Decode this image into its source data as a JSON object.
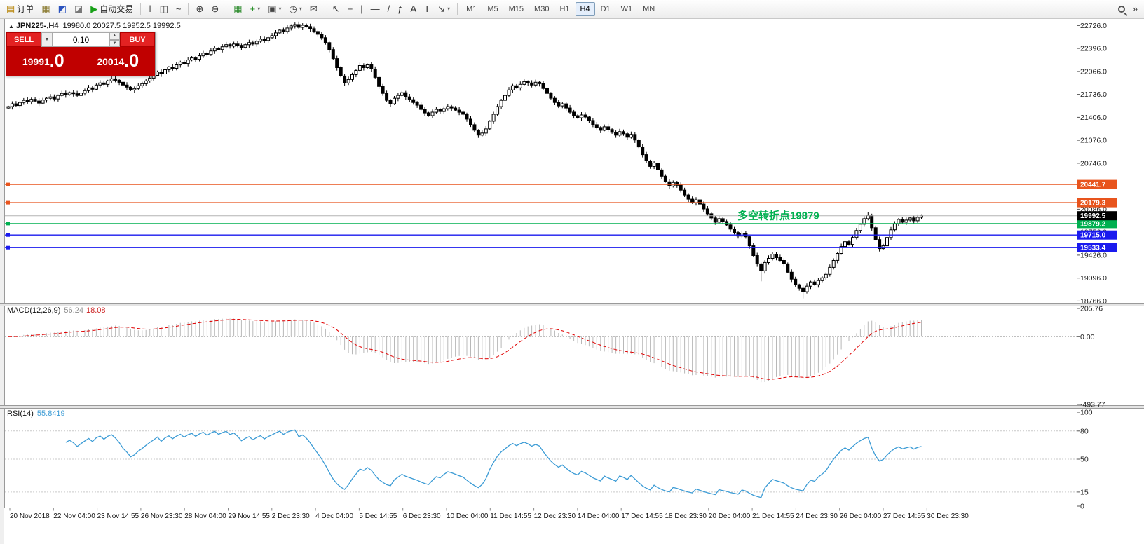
{
  "toolbar": {
    "groups": [
      {
        "items": [
          {
            "name": "new-order-button",
            "glyph": "▤",
            "color": "#b8860b",
            "label": "订单"
          },
          {
            "name": "charts-button",
            "glyph": "▦",
            "color": "#8a7a30"
          },
          {
            "name": "market-watch-button",
            "glyph": "◩",
            "color": "#2a52be"
          },
          {
            "name": "news-button",
            "glyph": "◪",
            "color": "#777777"
          },
          {
            "name": "autotrading-button",
            "glyph": "▶",
            "color": "#18a018",
            "label": "自动交易"
          }
        ]
      },
      {
        "items": [
          {
            "name": "bar-chart-button",
            "glyph": "‖"
          },
          {
            "name": "candlestick-chart-button",
            "glyph": "◫"
          },
          {
            "name": "line-chart-button",
            "glyph": "~"
          }
        ]
      },
      {
        "items": [
          {
            "name": "zoom-in-button",
            "glyph": "⊕"
          },
          {
            "name": "zoom-out-button",
            "glyph": "⊖"
          }
        ]
      },
      {
        "items": [
          {
            "name": "tile-windows-button",
            "glyph": "▦",
            "color": "#2a8a2a"
          },
          {
            "name": "indicators-button",
            "glyph": "+",
            "color": "#1a8a1a",
            "caret": true
          },
          {
            "name": "new-chart-button",
            "glyph": "▣",
            "color": "#444444",
            "caret": true
          },
          {
            "name": "period-button",
            "glyph": "◷",
            "color": "#444444",
            "caret": true
          },
          {
            "name": "alerts-button",
            "glyph": "✉",
            "color": "#444444"
          }
        ]
      },
      {
        "items": [
          {
            "name": "cursor-button",
            "glyph": "↖"
          },
          {
            "name": "crosshair-button",
            "glyph": "+"
          },
          {
            "name": "vertical-line-button",
            "glyph": "|"
          },
          {
            "name": "horizontal-line-button",
            "glyph": "—"
          },
          {
            "name": "trendline-button",
            "glyph": "/"
          },
          {
            "name": "fibonacci-button",
            "glyph": "ƒ"
          },
          {
            "name": "text-button",
            "glyph": "A"
          },
          {
            "name": "label-button",
            "glyph": "T"
          },
          {
            "name": "arrows-button",
            "glyph": "↘",
            "caret": true
          }
        ]
      },
      {
        "items": [
          {
            "name": "timeframe-m1-button",
            "tf": true,
            "label2": "M1"
          },
          {
            "name": "timeframe-m5-button",
            "tf": true,
            "label2": "M5"
          },
          {
            "name": "timeframe-m15-button",
            "tf": true,
            "label2": "M15"
          },
          {
            "name": "timeframe-m30-button",
            "tf": true,
            "label2": "M30"
          },
          {
            "name": "timeframe-h1-button",
            "tf": true,
            "label2": "H1"
          },
          {
            "name": "timeframe-h4-button",
            "tf": true,
            "label2": "H4",
            "active": true
          },
          {
            "name": "timeframe-d1-button",
            "tf": true,
            "label2": "D1"
          },
          {
            "name": "timeframe-w1-button",
            "tf": true,
            "label2": "W1"
          },
          {
            "name": "timeframe-mn-button",
            "tf": true,
            "label2": "MN"
          }
        ]
      },
      {
        "align": "right",
        "items": [
          {
            "name": "search-icon",
            "icon": "search"
          },
          {
            "name": "toolbar-overflow-button",
            "glyph": "»"
          }
        ]
      }
    ]
  },
  "chart": {
    "symbol": "JPN225-,H4",
    "ohlc": "19980.0 20027.5 19952.5 19992.5"
  },
  "trade_panel": {
    "sell_label": "SELL",
    "buy_label": "BUY",
    "volume": "0.10",
    "bid_main": "19991",
    "bid_frac": ".0",
    "ask_main": "20014",
    "ask_frac": ".0"
  },
  "chart_data": {
    "type": "candlestick",
    "symbol": "JPN225",
    "timeframe": "H4",
    "price_axis_labels": [
      "22726.0",
      "22396.0",
      "22066.0",
      "21736.0",
      "21406.0",
      "21076.0",
      "20746.0",
      "20416.0",
      "20086.0",
      "19756.0",
      "19426.0",
      "19096.0",
      "18766.0"
    ],
    "price_min": 18740,
    "price_max": 22790,
    "closes": [
      21560,
      21600,
      21575,
      21620,
      21650,
      21630,
      21665,
      21640,
      21610,
      21655,
      21680,
      21700,
      21670,
      21720,
      21750,
      21730,
      21760,
      21745,
      21720,
      21755,
      21790,
      21830,
      21810,
      21870,
      21900,
      21880,
      21930,
      21960,
      21940,
      21910,
      21870,
      21840,
      21800,
      21820,
      21860,
      21890,
      21930,
      21970,
      22010,
      22060,
      22030,
      22090,
      22130,
      22110,
      22160,
      22200,
      22180,
      22230,
      22260,
      22240,
      22290,
      22330,
      22310,
      22360,
      22400,
      22380,
      22420,
      22450,
      22430,
      22460,
      22440,
      22410,
      22450,
      22480,
      22460,
      22500,
      22530,
      22510,
      22550,
      22580,
      22620,
      22660,
      22640,
      22690,
      22720,
      22740,
      22700,
      22730,
      22710,
      22680,
      22640,
      22600,
      22550,
      22480,
      22380,
      22250,
      22120,
      22000,
      21900,
      21950,
      22020,
      22080,
      22150,
      22120,
      22160,
      22100,
      21980,
      21850,
      21750,
      21650,
      21600,
      21680,
      21720,
      21760,
      21700,
      21660,
      21620,
      21580,
      21520,
      21470,
      21430,
      21480,
      21520,
      21490,
      21530,
      21560,
      21540,
      21510,
      21480,
      21450,
      21380,
      21300,
      21220,
      21150,
      21180,
      21240,
      21350,
      21450,
      21560,
      21650,
      21720,
      21800,
      21860,
      21830,
      21880,
      21920,
      21900,
      21870,
      21910,
      21890,
      21820,
      21750,
      21680,
      21620,
      21570,
      21600,
      21540,
      21480,
      21430,
      21400,
      21440,
      21410,
      21360,
      21300,
      21260,
      21220,
      21270,
      21230,
      21190,
      21150,
      21200,
      21170,
      21120,
      21160,
      21080,
      20980,
      20870,
      20780,
      20700,
      20750,
      20650,
      20560,
      20480,
      20420,
      20470,
      20430,
      20360,
      20290,
      20230,
      20180,
      20220,
      20160,
      20090,
      20020,
      19960,
      19900,
      19950,
      19910,
      19860,
      19800,
      19750,
      19700,
      19740,
      19690,
      19560,
      19420,
      19300,
      19200,
      19320,
      19380,
      19440,
      19390,
      19350,
      19300,
      19180,
      19080,
      19000,
      18950,
      18900,
      18980,
      19040,
      19000,
      19060,
      19100,
      19150,
      19250,
      19350,
      19450,
      19550,
      19620,
      19580,
      19680,
      19780,
      19870,
      19950,
      20000,
      19820,
      19650,
      19520,
      19560,
      19680,
      19790,
      19880,
      19940,
      19900,
      19930,
      19960,
      19920,
      19970,
      19992.5
    ],
    "lines": [
      {
        "label": "20441.7",
        "value": 20441.7,
        "color": "#e8541d"
      },
      {
        "label": "20179.3",
        "value": 20179.3,
        "color": "#e8541d"
      },
      {
        "label": "19879.2",
        "value": 19879.2,
        "color": "#00b050"
      },
      {
        "label": "19715.0",
        "value": 19715.0,
        "color": "#1a1aee"
      },
      {
        "label": "19533.4",
        "value": 19533.4,
        "color": "#1a1aee"
      }
    ],
    "current_price": {
      "label": "19992.5",
      "value": 19992.5
    },
    "annotation": {
      "text": "多空转折点19879",
      "value": 19942,
      "color": "#00b050"
    },
    "macd": {
      "name": "MACD(12,26,9)",
      "value": "56.24",
      "signal": "18.08",
      "params": [
        12,
        26,
        9
      ],
      "axis_labels": [
        "205.76",
        "0.00",
        "-493.77"
      ],
      "scale_max": 205.76,
      "scale_min": -493.77
    },
    "rsi": {
      "name": "RSI(14)",
      "value": "55.8419",
      "period": 14,
      "axis_labels": [
        "100",
        "80",
        "50",
        "15",
        "0"
      ],
      "levels": [
        80,
        50,
        15
      ]
    },
    "time_labels": [
      "20 Nov 2018",
      "22 Nov 04:00",
      "23 Nov 14:55",
      "26 Nov 23:30",
      "28 Nov 04:00",
      "29 Nov 14:55",
      "2 Dec 23:30",
      "4 Dec 04:00",
      "5 Dec 14:55",
      "6 Dec 23:30",
      "10 Dec 04:00",
      "11 Dec 14:55",
      "12 Dec 23:30",
      "14 Dec 04:00",
      "17 Dec 14:55",
      "18 Dec 23:30",
      "20 Dec 04:00",
      "21 Dec 14:55",
      "24 Dec 23:30",
      "26 Dec 04:00",
      "27 Dec 14:55",
      "30 Dec 23:30"
    ]
  }
}
